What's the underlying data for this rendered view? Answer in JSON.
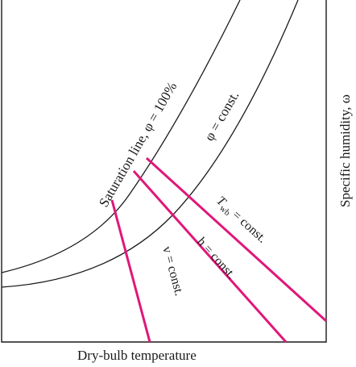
{
  "diagram": {
    "x_axis_label": "Dry-bulb temperature",
    "y_axis_label": "Specific humidity, ω",
    "saturation_label": "Saturation line, φ = 100%",
    "phi_const_label": "φ = const.",
    "twb_label": {
      "main": "T",
      "sub": "wb",
      "rest": " = const."
    },
    "h_label": "h = const.",
    "v_label": "v = const.",
    "colors": {
      "frame": "#1a1a1a",
      "curves": "#1a1a1a",
      "property_lines": "#e0177a"
    }
  }
}
